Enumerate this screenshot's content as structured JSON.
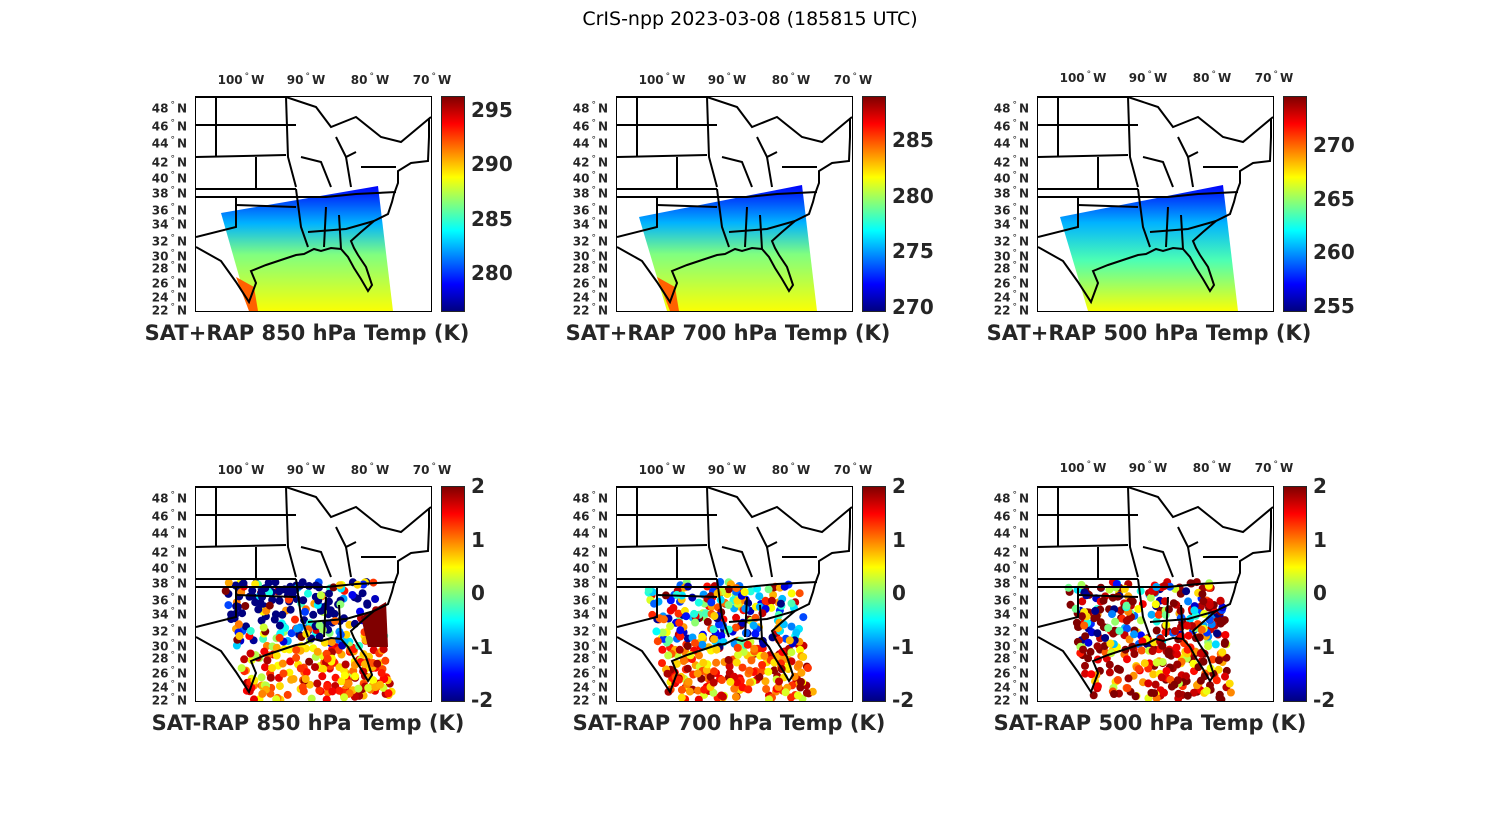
{
  "title": "CrIS-npp 2023-03-08 (185815 UTC)",
  "lon_labels": [
    "100",
    "90",
    "80",
    "70"
  ],
  "lon_suffix": "W",
  "lat_labels": [
    "48",
    "46",
    "44",
    "42",
    "40",
    "38",
    "36",
    "34",
    "32",
    "30",
    "28",
    "26",
    "24",
    "22"
  ],
  "lat_suffix": "N",
  "colormap": "jet",
  "panels": [
    {
      "title": "SAT+RAP 850 hPa Temp (K)",
      "type": "temp",
      "cbar_range": [
        276.6,
        296.3
      ],
      "cbar_ticks": [
        "280",
        "285",
        "290",
        "295"
      ]
    },
    {
      "title": "SAT+RAP 700 hPa Temp (K)",
      "type": "temp",
      "cbar_range": [
        269.7,
        289
      ],
      "cbar_ticks": [
        "270",
        "275",
        "280",
        "285"
      ]
    },
    {
      "title": "SAT+RAP 500 hPa Temp (K)",
      "type": "temp",
      "cbar_range": [
        254.6,
        274.6
      ],
      "cbar_ticks": [
        "255",
        "260",
        "265",
        "270"
      ]
    },
    {
      "title": "SAT-RAP 850 hPa Temp (K)",
      "type": "diff",
      "cbar_range": [
        -2,
        2
      ],
      "cbar_ticks": [
        "-2",
        "-1",
        "0",
        "1",
        "2"
      ]
    },
    {
      "title": "SAT-RAP 700 hPa Temp (K)",
      "type": "diff",
      "cbar_range": [
        -2,
        2
      ],
      "cbar_ticks": [
        "-2",
        "-1",
        "0",
        "1",
        "2"
      ]
    },
    {
      "title": "SAT-RAP 500 hPa Temp (K)",
      "type": "diff",
      "cbar_range": [
        -2,
        2
      ],
      "cbar_ticks": [
        "-2",
        "-1",
        "0",
        "1",
        "2"
      ]
    }
  ]
}
